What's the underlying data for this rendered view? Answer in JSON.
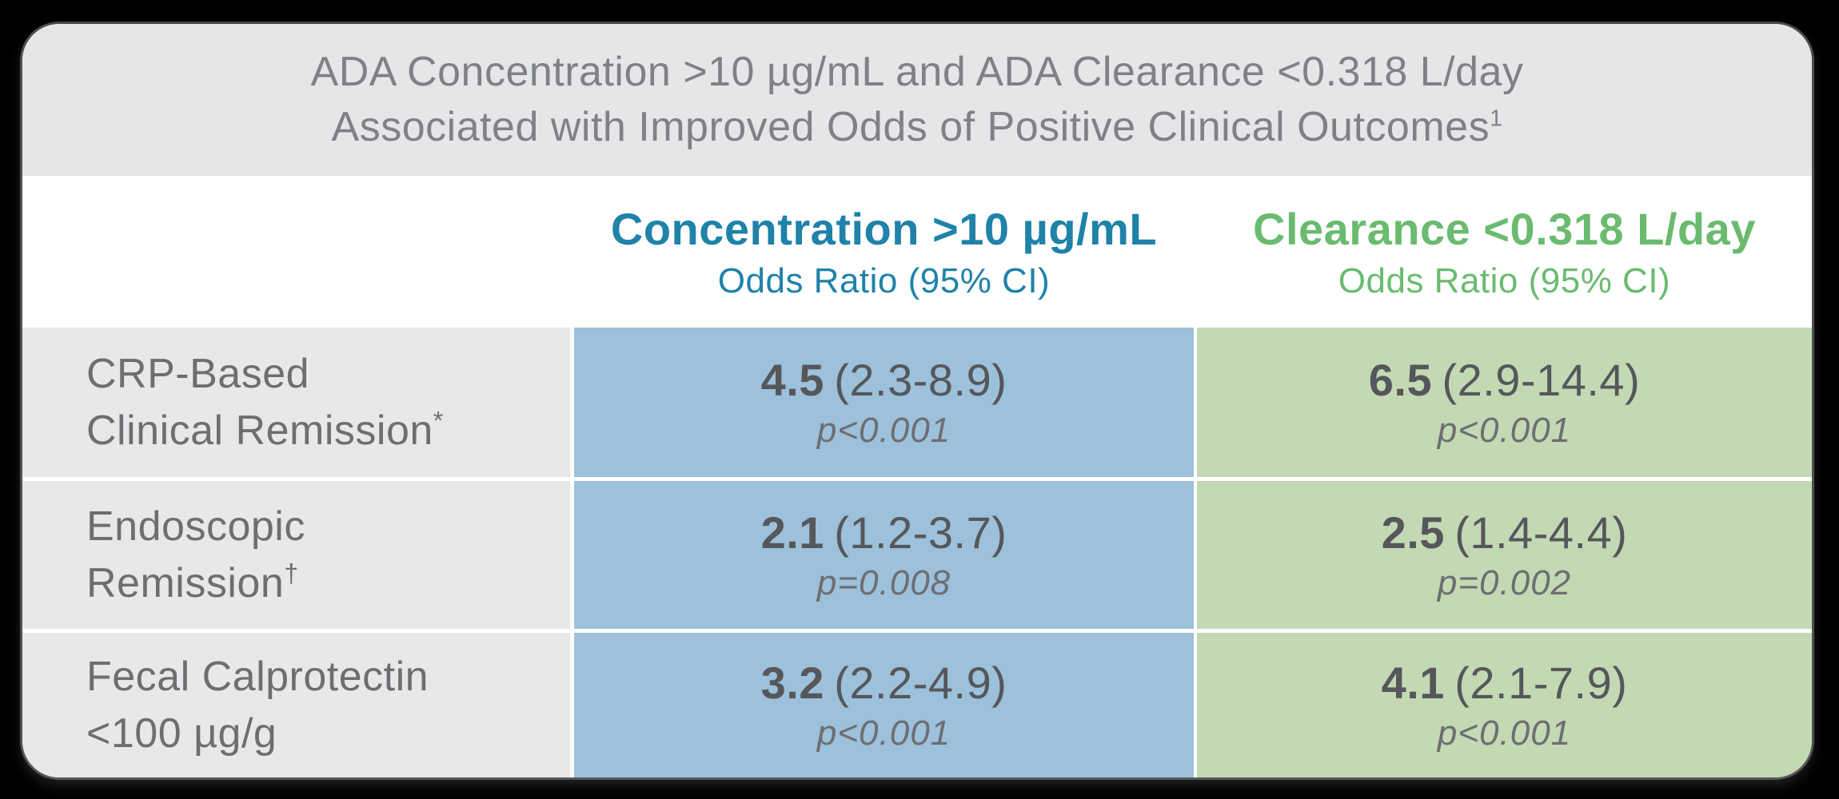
{
  "colors": {
    "page_bg": "#000000",
    "card_bg": "#FFFFFF",
    "title_band_bg": "#E5E6E7",
    "label_cell_bg": "#E7E8E9",
    "blue_cell_bg": "#9DC0DB",
    "green_cell_bg": "#C2D9B4",
    "blue_header_text": "#1F82A9",
    "green_header_text": "#6ABB6F",
    "title_text": "#7F8184",
    "label_text": "#6D6E70",
    "value_text": "#55575A",
    "p_text": "#6D6E71"
  },
  "title": {
    "line1": "ADA Concentration >10 µg/mL and ADA Clearance <0.318 L/day",
    "line2": "Associated with Improved Odds of Positive Clinical Outcomes",
    "reference_superscript": "1"
  },
  "columns": [
    {
      "header": "Concentration >10 µg/mL",
      "subheader": "Odds Ratio (95% CI)"
    },
    {
      "header": "Clearance <0.318 L/day",
      "subheader": "Odds Ratio (95% CI)"
    }
  ],
  "rows": [
    {
      "label_line1": "CRP-Based",
      "label_line2": "Clinical Remission",
      "label_superscript": "*",
      "concentration": {
        "odds_ratio": "4.5",
        "ci": "(2.3-8.9)",
        "p_value": "p<0.001"
      },
      "clearance": {
        "odds_ratio": "6.5",
        "ci": "(2.9-14.4)",
        "p_value": "p<0.001"
      }
    },
    {
      "label_line1": "Endoscopic",
      "label_line2": "Remission",
      "label_superscript": "†",
      "concentration": {
        "odds_ratio": "2.1",
        "ci": "(1.2-3.7)",
        "p_value": "p=0.008"
      },
      "clearance": {
        "odds_ratio": "2.5",
        "ci": "(1.4-4.4)",
        "p_value": "p=0.002"
      }
    },
    {
      "label_line1": "Fecal Calprotectin",
      "label_line2": "<100 µg/g",
      "label_superscript": "",
      "concentration": {
        "odds_ratio": "3.2",
        "ci": "(2.2-4.9)",
        "p_value": "p<0.001"
      },
      "clearance": {
        "odds_ratio": "4.1",
        "ci": "(2.1-7.9)",
        "p_value": "p<0.001"
      }
    }
  ],
  "chart_data": {
    "type": "table",
    "title": "ADA Concentration >10 µg/mL and ADA Clearance <0.318 L/day Associated with Improved Odds of Positive Clinical Outcomes",
    "columns": [
      "Clinical Outcome",
      "Concentration >10 µg/mL Odds Ratio (95% CI)",
      "Clearance <0.318 L/day Odds Ratio (95% CI)"
    ],
    "rows": [
      {
        "outcome": "CRP-Based Clinical Remission",
        "concentration_odds_ratio": 4.5,
        "concentration_ci": [
          2.3,
          8.9
        ],
        "concentration_p": "<0.001",
        "clearance_odds_ratio": 6.5,
        "clearance_ci": [
          2.9,
          14.4
        ],
        "clearance_p": "<0.001"
      },
      {
        "outcome": "Endoscopic Remission",
        "concentration_odds_ratio": 2.1,
        "concentration_ci": [
          1.2,
          3.7
        ],
        "concentration_p": "=0.008",
        "clearance_odds_ratio": 2.5,
        "clearance_ci": [
          1.4,
          4.4
        ],
        "clearance_p": "=0.002"
      },
      {
        "outcome": "Fecal Calprotectin <100 µg/g",
        "concentration_odds_ratio": 3.2,
        "concentration_ci": [
          2.2,
          4.9
        ],
        "concentration_p": "<0.001",
        "clearance_odds_ratio": 4.1,
        "clearance_ci": [
          2.1,
          7.9
        ],
        "clearance_p": "<0.001"
      }
    ]
  }
}
